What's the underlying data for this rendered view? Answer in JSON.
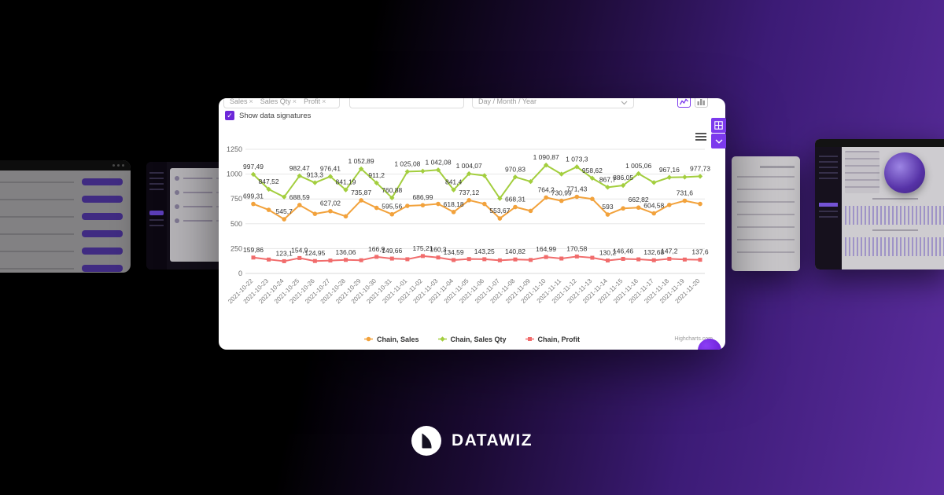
{
  "toolbar": {
    "chips": [
      "Sales",
      "Sales Qty",
      "Profit"
    ],
    "chip_remove_glyph": "×",
    "granularity": "Day / Month / Year"
  },
  "controls": {
    "show_signatures": "Show data signatures"
  },
  "credit": "Highcharts.com",
  "logo": "DATAWIZ",
  "colors": {
    "accent_purple": "#7c3aed",
    "checkbox_purple": "#6d28d9",
    "background_purple": "#5b2d9e",
    "sales_orange": "#f2a23c",
    "sales_qty_green": "#a3ce3e",
    "profit_red": "#f16c6c"
  },
  "chart_data": {
    "type": "line",
    "x": [
      "2021-10-22",
      "2021-10-23",
      "2021-10-24",
      "2021-10-25",
      "2021-10-26",
      "2021-10-27",
      "2021-10-28",
      "2021-10-29",
      "2021-10-30",
      "2021-10-31",
      "2021-11-01",
      "2021-11-02",
      "2021-11-03",
      "2021-11-04",
      "2021-11-05",
      "2021-11-06",
      "2021-11-07",
      "2021-11-08",
      "2021-11-09",
      "2021-11-10",
      "2021-11-11",
      "2021-11-12",
      "2021-11-13",
      "2021-11-14",
      "2021-11-15",
      "2021-11-16",
      "2021-11-17",
      "2021-11-18",
      "2021-11-19",
      "2021-11-20"
    ],
    "ylim": [
      0,
      1250
    ],
    "yticks": [
      0,
      250,
      500,
      750,
      1000,
      1250
    ],
    "grid": "horizontal",
    "legend_position": "bottom",
    "series": [
      {
        "name": "Chain, Sales",
        "color": "#f2a23c",
        "marker": "circle",
        "values": [
          699.31,
          640,
          545.7,
          688.59,
          600,
          627.02,
          575,
          735.87,
          660,
          595.56,
          680,
          686.99,
          700,
          618.18,
          737.12,
          700,
          553.67,
          668.31,
          630,
          764.2,
          730.99,
          771.43,
          750,
          593,
          655,
          662.82,
          604.58,
          690,
          731.6,
          700
        ],
        "labels": [
          "699,31",
          "",
          "545,7",
          "688,59",
          "",
          "627,02",
          "",
          "735,87",
          "",
          "595,56",
          "",
          "686,99",
          "",
          "618,18",
          "737,12",
          "",
          "553,67",
          "668,31",
          "",
          "764,2",
          "730,99",
          "771,43",
          "",
          "593",
          "",
          "662,82",
          "604,58",
          "",
          "731,6",
          ""
        ]
      },
      {
        "name": "Chain, Sales Qty",
        "color": "#a3ce3e",
        "marker": "diamond",
        "values": [
          997.49,
          847.52,
          770,
          982.47,
          913.3,
          976.41,
          841.19,
          1052.89,
          911.2,
          760.88,
          1025.08,
          1030,
          1042.08,
          841.4,
          1004.07,
          985,
          755,
          970.83,
          925,
          1090.87,
          1000,
          1073.3,
          958.62,
          867.7,
          886.05,
          1005.06,
          915,
          967.16,
          970,
          977.73
        ],
        "labels": [
          "997,49",
          "847,52",
          "",
          "982,47",
          "913,3",
          "976,41",
          "841,19",
          "1 052,89",
          "911,2",
          "760,88",
          "1 025,08",
          "",
          "1 042,08",
          "841,4",
          "1 004,07",
          "",
          "",
          "970,83",
          "",
          "1 090,87",
          "",
          "1 073,3",
          "958,62",
          "867,7",
          "886,05",
          "1 005,06",
          "",
          "967,16",
          "",
          "977,73"
        ]
      },
      {
        "name": "Chain, Profit",
        "color": "#f16c6c",
        "marker": "square",
        "values": [
          159.86,
          140,
          123.1,
          154.9,
          124.95,
          130,
          136.06,
          133,
          166.9,
          149.66,
          143,
          175.21,
          160.3,
          134.59,
          145,
          143.25,
          132,
          140.82,
          136,
          164.99,
          150,
          170.58,
          158,
          130.2,
          146.46,
          142,
          132.68,
          147.2,
          140,
          137.6
        ],
        "labels": [
          "159,86",
          "",
          "123,1",
          "154,9",
          "124,95",
          "",
          "136,06",
          "",
          "166,9",
          "149,66",
          "",
          "175,21",
          "160,3",
          "134,59",
          "",
          "143,25",
          "",
          "140,82",
          "",
          "164,99",
          "",
          "170,58",
          "",
          "130,2",
          "146,46",
          "",
          "132,68",
          "147,2",
          "",
          "137,6"
        ]
      }
    ]
  }
}
